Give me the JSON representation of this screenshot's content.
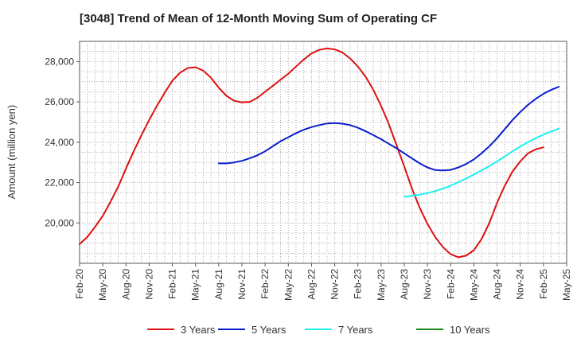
{
  "chart_data": {
    "type": "line",
    "title": "[3048]  Trend of Mean of 12-Month Moving Sum of Operating CF",
    "xlabel": "",
    "ylabel": "Amount (million yen)",
    "ylim": [
      18000,
      29000
    ],
    "yticks": [
      20000,
      22000,
      24000,
      26000,
      28000
    ],
    "ytick_labels": [
      "20,000",
      "22,000",
      "24,000",
      "26,000",
      "28,000"
    ],
    "x_start": "Feb-20",
    "x_months": 63,
    "xtick_labels": [
      "Feb-20",
      "May-20",
      "Aug-20",
      "Nov-20",
      "Feb-21",
      "May-21",
      "Aug-21",
      "Nov-21",
      "Feb-22",
      "May-22",
      "Aug-22",
      "Nov-22",
      "Feb-23",
      "May-23",
      "Aug-23",
      "Nov-23",
      "Feb-24",
      "May-24",
      "Aug-24",
      "Nov-24",
      "Feb-25",
      "May-25"
    ],
    "grid": true,
    "legend_position": "bottom",
    "series": [
      {
        "name": "3 Years",
        "color": "#dd1111",
        "start_index": 0,
        "values": [
          18950,
          19300,
          19800,
          20350,
          21050,
          21800,
          22700,
          23550,
          24350,
          25100,
          25800,
          26450,
          27050,
          27450,
          27680,
          27720,
          27550,
          27200,
          26700,
          26300,
          26050,
          25980,
          26000,
          26200,
          26500,
          26800,
          27100,
          27400,
          27750,
          28100,
          28400,
          28580,
          28650,
          28600,
          28450,
          28150,
          27750,
          27250,
          26600,
          25800,
          24900,
          23850,
          22800,
          21700,
          20750,
          19950,
          19300,
          18800,
          18450,
          18300,
          18380,
          18650,
          19200,
          20000,
          21000,
          21850,
          22550,
          23050,
          23450,
          23650,
          23750
        ]
      },
      {
        "name": "5 Years",
        "color": "#0a1ecc",
        "start_index": 18,
        "values": [
          22950,
          22950,
          23000,
          23080,
          23200,
          23350,
          23550,
          23800,
          24050,
          24250,
          24450,
          24620,
          24750,
          24850,
          24930,
          24950,
          24920,
          24850,
          24720,
          24550,
          24350,
          24150,
          23920,
          23700,
          23450,
          23200,
          22950,
          22750,
          22620,
          22600,
          22630,
          22750,
          22920,
          23150,
          23450,
          23800,
          24200,
          24650,
          25100,
          25500,
          25850,
          26150,
          26400,
          26600,
          26750
        ]
      },
      {
        "name": "7 Years",
        "color": "#1ef0f0",
        "start_index": 42,
        "values": [
          21300,
          21350,
          21400,
          21480,
          21580,
          21700,
          21850,
          22020,
          22200,
          22400,
          22600,
          22820,
          23050,
          23300,
          23550,
          23780,
          24000,
          24200,
          24380,
          24530,
          24680
        ]
      },
      {
        "name": "10 Years",
        "color": "#1a8a1a",
        "start_index": 0,
        "values": []
      }
    ]
  }
}
